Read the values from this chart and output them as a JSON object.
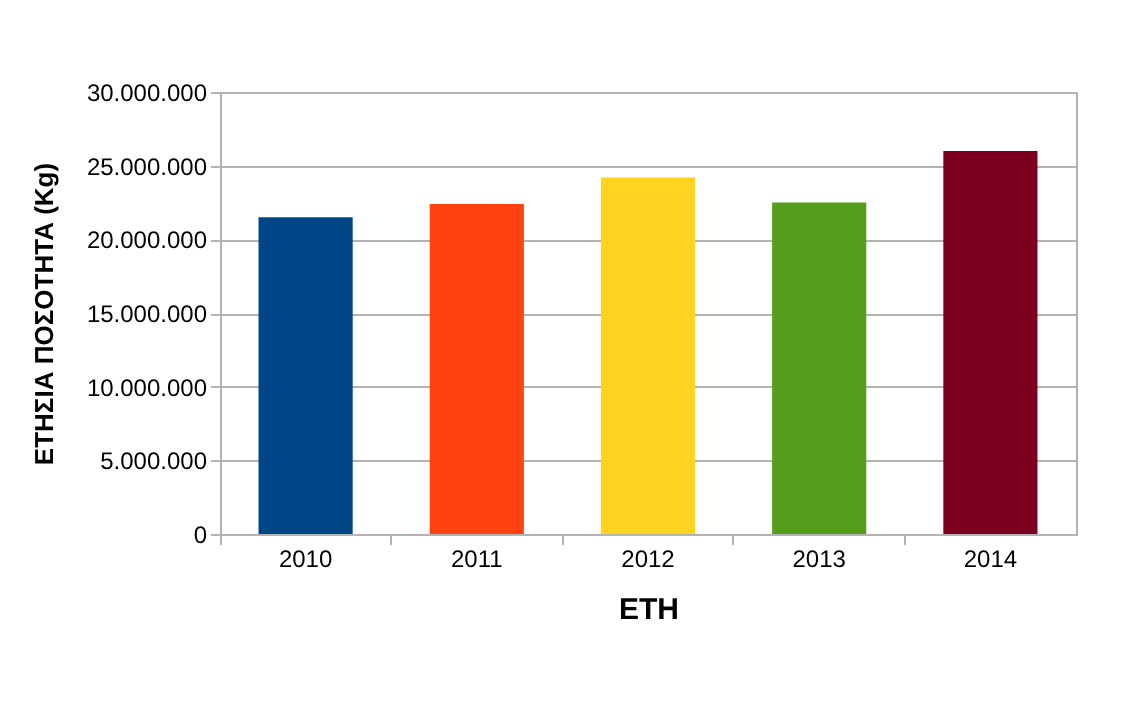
{
  "chart_data": {
    "type": "bar",
    "xlabel": "ΕΤΗ",
    "ylabel": "ΕΤΗΣΙΑ ΠΟΣΟΤΗΤΑ (Kg)",
    "categories": [
      "2010",
      "2011",
      "2012",
      "2013",
      "2014"
    ],
    "values": [
      21500000,
      22400000,
      24200000,
      22500000,
      26000000
    ],
    "colors": [
      "#004586",
      "#ff420e",
      "#ffd320",
      "#579d1c",
      "#7e0021"
    ],
    "ylim": [
      0,
      30000000
    ],
    "yticks": [
      {
        "value": 0,
        "label": "0"
      },
      {
        "value": 5000000,
        "label": "5.000.000"
      },
      {
        "value": 10000000,
        "label": "10.000.000"
      },
      {
        "value": 15000000,
        "label": "15.000.000"
      },
      {
        "value": 20000000,
        "label": "20.000.000"
      },
      {
        "value": 25000000,
        "label": "25.000.000"
      },
      {
        "value": 30000000,
        "label": "30.000.000"
      }
    ],
    "grid": "y"
  }
}
